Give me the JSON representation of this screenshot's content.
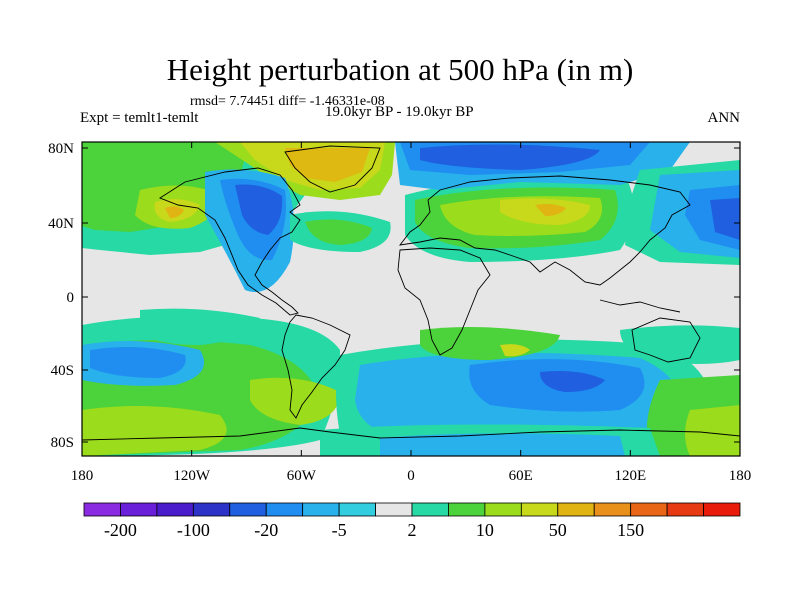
{
  "title": "Height perturbation at 500 hPa (in m)",
  "stats": "rmsd= 7.74451 diff= -1.46331e-08",
  "experiment": "Expt = temlt1-temlt",
  "period": "19.0kyr BP - 19.0kyr BP",
  "season": "ANN",
  "axes": {
    "lon_ticks": [
      "180",
      "120W",
      "60W",
      "0",
      "60E",
      "120E",
      "180"
    ],
    "lat_ticks": [
      "80N",
      "40N",
      "0",
      "40S",
      "80S"
    ]
  },
  "colorbar": {
    "labels": [
      "-200",
      "-100",
      "-20",
      "-5",
      "2",
      "10",
      "50",
      "150"
    ],
    "colors": [
      "#8a2be2",
      "#6a1fd8",
      "#4b1ccc",
      "#2e33c8",
      "#1f5fe0",
      "#1f8ef0",
      "#29b1ec",
      "#33cde0",
      "#e6e6e6",
      "#27d9a4",
      "#4cd23a",
      "#9bdc1c",
      "#c8d81a",
      "#e0b412",
      "#e8901a",
      "#e86616",
      "#e83a12",
      "#e81a0a"
    ]
  },
  "layers": {
    "land": "coastlines",
    "field": "height-perturbation-contours"
  }
}
